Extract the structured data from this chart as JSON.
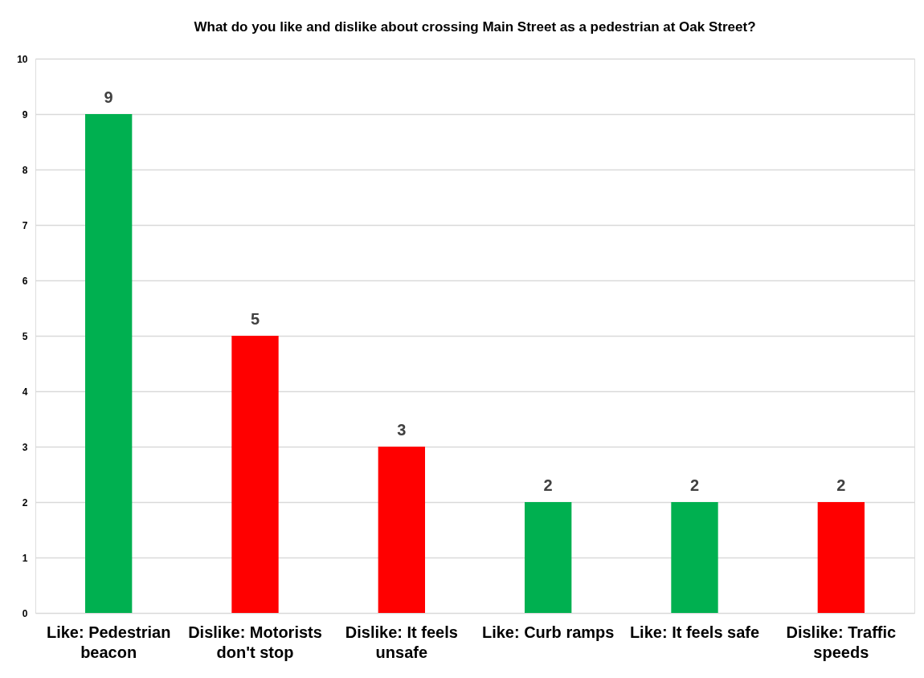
{
  "chart_data": {
    "type": "bar",
    "title": "What do you like and dislike about crossing Main Street as a pedestrian at Oak Street?",
    "categories": [
      "Like: Pedestrian beacon",
      "Dislike: Motorists don't stop",
      "Dislike: It feels unsafe",
      "Like: Curb ramps",
      "Like: It feels safe",
      "Dislike: Traffic speeds"
    ],
    "values": [
      9,
      5,
      3,
      2,
      2,
      2
    ],
    "colors": [
      "#00b050",
      "#ff0000",
      "#ff0000",
      "#00b050",
      "#00b050",
      "#ff0000"
    ],
    "ylim": [
      0,
      10
    ],
    "yticks": [
      0,
      1,
      2,
      3,
      4,
      5,
      6,
      7,
      8,
      9,
      10
    ],
    "grid": "y",
    "data_labels": true
  }
}
